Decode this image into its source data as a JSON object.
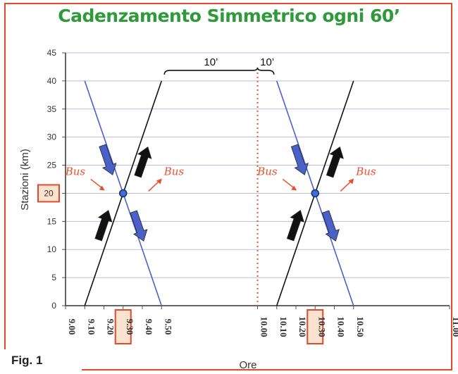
{
  "figure_label": "Fig. 1",
  "chart_data": {
    "type": "line",
    "title": "Cadenzamento Simmetrico ogni 60’",
    "xlabel": "Ore",
    "ylabel": "Stazioni (km)",
    "xlim": [
      9.0,
      11.0
    ],
    "ylim": [
      0,
      45
    ],
    "x_ticks": [
      "9.00",
      "9.10",
      "9.20",
      "9.30",
      "9.40",
      "9.50",
      "10.00",
      "10.10",
      "10.20",
      "10.30",
      "10.40",
      "10.50",
      "11.00"
    ],
    "y_ticks": [
      "0",
      "5",
      "10",
      "15",
      "20",
      "25",
      "30",
      "35",
      "40",
      "45"
    ],
    "highlighted_x_ticks": [
      "9.30",
      "10.30"
    ],
    "highlighted_y_tick": "20",
    "grid": "horizontal",
    "symmetry_time": 10.0,
    "series": [
      {
        "color": "#111111",
        "points": [
          [
            9.1,
            0
          ],
          [
            9.5,
            40
          ]
        ]
      },
      {
        "color": "#4a62c8",
        "points": [
          [
            9.1,
            40
          ],
          [
            9.5,
            0
          ]
        ]
      },
      {
        "color": "#111111",
        "points": [
          [
            10.1,
            0
          ],
          [
            10.5,
            40
          ]
        ]
      },
      {
        "color": "#4a62c8",
        "points": [
          [
            10.1,
            40
          ],
          [
            10.5,
            0
          ]
        ]
      }
    ],
    "crossings": [
      [
        9.3,
        20
      ],
      [
        10.3,
        20
      ]
    ],
    "annotations": {
      "bus_label": "Bus",
      "gap_left": "10’",
      "gap_right": "10’"
    },
    "colors": {
      "up": "#111111",
      "down": "#4a62c8",
      "accent": "#e8502f",
      "title": "#2e9a3a"
    }
  }
}
